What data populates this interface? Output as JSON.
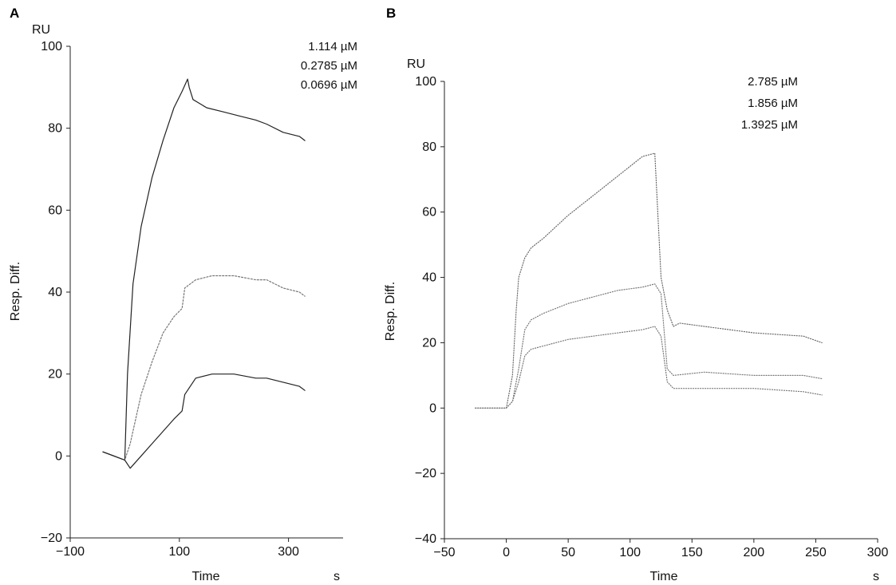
{
  "chart_data": [
    {
      "panel": "A",
      "type": "line",
      "ylabel": "Resp. Diff.",
      "yunit": "RU",
      "xlabel": "Time",
      "xunit": "s",
      "xlim": [
        -100,
        400
      ],
      "ylim": [
        -20,
        100
      ],
      "xticks": [
        -100,
        100,
        300
      ],
      "yticks": [
        -20,
        0,
        20,
        40,
        60,
        80,
        100
      ],
      "legend": [
        "1.114 µM",
        "0.2785 µM",
        "0.0696 µM"
      ],
      "legend_placement": "top-right",
      "grid": false,
      "series": [
        {
          "color": "#222222",
          "dash": "none",
          "x": [
            -40,
            -20,
            0,
            5,
            15,
            30,
            50,
            70,
            90,
            105,
            115,
            118,
            125,
            150,
            180,
            210,
            240,
            260,
            290,
            320,
            330
          ],
          "y": [
            1,
            0,
            -1,
            20,
            42,
            56,
            68,
            77,
            85,
            89,
            92,
            90,
            87,
            85,
            84,
            83,
            82,
            81,
            79,
            78,
            77
          ]
        },
        {
          "color": "#777777",
          "dash": "2,2",
          "x": [
            -40,
            -20,
            0,
            10,
            30,
            50,
            70,
            90,
            105,
            110,
            130,
            160,
            200,
            240,
            260,
            290,
            320,
            330
          ],
          "y": [
            1,
            0,
            -1,
            3,
            15,
            23,
            30,
            34,
            36,
            41,
            43,
            44,
            44,
            43,
            43,
            41,
            40,
            39
          ],
          "y_fix_first": true
        },
        {
          "color": "#222222",
          "dash": "none",
          "x": [
            -40,
            -20,
            0,
            10,
            30,
            50,
            70,
            90,
            105,
            110,
            130,
            160,
            200,
            240,
            260,
            290,
            320,
            330
          ],
          "y": [
            1,
            0,
            -1,
            -3,
            0,
            3,
            6,
            9,
            11,
            15,
            19,
            20,
            20,
            19,
            19,
            18,
            17,
            16
          ]
        }
      ]
    },
    {
      "panel": "B",
      "type": "line",
      "ylabel": "Resp. Diff.",
      "yunit": "RU",
      "xlabel": "Time",
      "xunit": "s",
      "xlim": [
        -50,
        300
      ],
      "ylim": [
        -40,
        100
      ],
      "xticks": [
        -50,
        0,
        50,
        100,
        150,
        200,
        250,
        300
      ],
      "yticks": [
        -40,
        -20,
        0,
        20,
        40,
        60,
        80,
        100
      ],
      "legend": [
        "2.785 µM",
        "1.856 µM",
        "1.3925 µM"
      ],
      "legend_placement": "top-right",
      "grid": false,
      "series": [
        {
          "color": "#666666",
          "dash": "1,2",
          "x": [
            -25,
            -10,
            0,
            5,
            8,
            10,
            15,
            20,
            30,
            50,
            70,
            90,
            110,
            120,
            125,
            130,
            135,
            140,
            160,
            200,
            240,
            255
          ],
          "y": [
            0,
            0,
            0,
            10,
            30,
            40,
            46,
            49,
            52,
            59,
            65,
            71,
            77,
            78,
            40,
            30,
            25,
            26,
            25,
            23,
            22,
            20
          ]
        },
        {
          "color": "#777777",
          "dash": "1,2",
          "x": [
            -25,
            -10,
            0,
            5,
            10,
            15,
            20,
            30,
            50,
            70,
            90,
            110,
            120,
            125,
            130,
            135,
            160,
            200,
            240,
            255
          ],
          "y": [
            0,
            0,
            0,
            2,
            12,
            24,
            27,
            29,
            32,
            34,
            36,
            37,
            38,
            35,
            12,
            10,
            11,
            10,
            10,
            9
          ]
        },
        {
          "color": "#777777",
          "dash": "1,2",
          "x": [
            -25,
            -10,
            0,
            5,
            10,
            15,
            20,
            30,
            50,
            70,
            90,
            110,
            120,
            125,
            130,
            135,
            160,
            200,
            240,
            255
          ],
          "y": [
            0,
            0,
            0,
            2,
            8,
            16,
            18,
            19,
            21,
            22,
            23,
            24,
            25,
            22,
            8,
            6,
            6,
            6,
            5,
            4
          ]
        }
      ]
    }
  ]
}
